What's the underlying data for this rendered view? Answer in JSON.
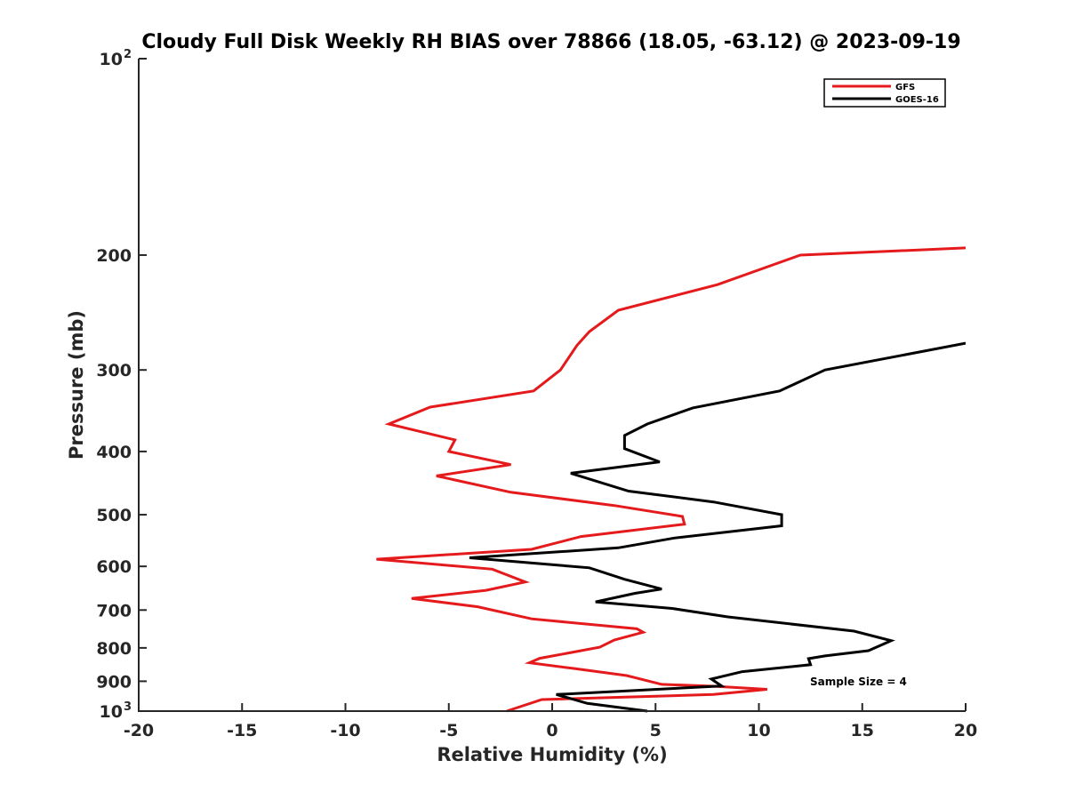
{
  "chart_data": {
    "type": "line",
    "title": "Cloudy Full Disk Weekly RH BIAS over 78866 (18.05, -63.12) @ 2023-09-19",
    "xlabel": "Relative Humidity (%)",
    "ylabel": "Pressure (mb)",
    "xlim": [
      -20,
      20
    ],
    "ylim": [
      100,
      1000
    ],
    "yscale": "log",
    "y_reversed": true,
    "grid": false,
    "legend_position": "top-right",
    "xticks": [
      "-20",
      "-15",
      "-10",
      "-5",
      "0",
      "5",
      "10",
      "15",
      "20"
    ],
    "yticks": [
      {
        "value": 100,
        "base": "10",
        "exp": "2"
      },
      {
        "value": 200,
        "base": "200",
        "exp": ""
      },
      {
        "value": 300,
        "base": "300",
        "exp": ""
      },
      {
        "value": 400,
        "base": "400",
        "exp": ""
      },
      {
        "value": 500,
        "base": "500",
        "exp": ""
      },
      {
        "value": 600,
        "base": "600",
        "exp": ""
      },
      {
        "value": 700,
        "base": "700",
        "exp": ""
      },
      {
        "value": 800,
        "base": "800",
        "exp": ""
      },
      {
        "value": 900,
        "base": "900",
        "exp": ""
      },
      {
        "value": 1000,
        "base": "10",
        "exp": "3"
      }
    ],
    "annotation": "Sample Size = 4",
    "series": [
      {
        "name": "GFS",
        "color": "#e41a1c",
        "points": [
          [
            20.0,
            195
          ],
          [
            12.0,
            200
          ],
          [
            8.0,
            222
          ],
          [
            3.2,
            243
          ],
          [
            1.8,
            262
          ],
          [
            1.2,
            275
          ],
          [
            0.4,
            300
          ],
          [
            -0.9,
            323
          ],
          [
            -5.9,
            342
          ],
          [
            -7.9,
            363
          ],
          [
            -4.7,
            384
          ],
          [
            -5.0,
            400
          ],
          [
            -2.0,
            419
          ],
          [
            -5.6,
            436
          ],
          [
            -2.0,
            462
          ],
          [
            3.0,
            484
          ],
          [
            6.3,
            503
          ],
          [
            6.4,
            517
          ],
          [
            1.4,
            540
          ],
          [
            -1.0,
            565
          ],
          [
            -8.5,
            585
          ],
          [
            -2.9,
            606
          ],
          [
            -1.3,
            634
          ],
          [
            -3.2,
            653
          ],
          [
            -6.8,
            672
          ],
          [
            -3.6,
            692
          ],
          [
            -1.0,
            722
          ],
          [
            4.1,
            748
          ],
          [
            4.4,
            757
          ],
          [
            3.0,
            778
          ],
          [
            2.3,
            798
          ],
          [
            -0.6,
            830
          ],
          [
            -1.1,
            843
          ],
          [
            1.0,
            860
          ],
          [
            3.6,
            882
          ],
          [
            5.3,
            910
          ],
          [
            7.8,
            916
          ],
          [
            10.4,
            926
          ],
          [
            7.8,
            943
          ],
          [
            -0.5,
            960
          ],
          [
            -2.2,
            1000
          ]
        ]
      },
      {
        "name": "GOES-16",
        "color": "#000000",
        "points": [
          [
            20.0,
            273
          ],
          [
            13.2,
            300
          ],
          [
            11.0,
            323
          ],
          [
            6.8,
            343
          ],
          [
            4.6,
            363
          ],
          [
            3.5,
            378
          ],
          [
            3.5,
            396
          ],
          [
            5.2,
            415
          ],
          [
            0.9,
            432
          ],
          [
            3.7,
            460
          ],
          [
            7.8,
            478
          ],
          [
            11.1,
            500
          ],
          [
            11.1,
            520
          ],
          [
            5.9,
            543
          ],
          [
            3.2,
            562
          ],
          [
            -4.0,
            582
          ],
          [
            1.8,
            603
          ],
          [
            3.5,
            628
          ],
          [
            5.3,
            650
          ],
          [
            4.0,
            660
          ],
          [
            2.1,
            680
          ],
          [
            5.8,
            696
          ],
          [
            8.5,
            717
          ],
          [
            14.6,
            754
          ],
          [
            16.4,
            780
          ],
          [
            15.3,
            808
          ],
          [
            13.2,
            823
          ],
          [
            12.4,
            831
          ],
          [
            12.5,
            849
          ],
          [
            9.2,
            870
          ],
          [
            7.7,
            893
          ],
          [
            8.2,
            915
          ],
          [
            0.2,
            943
          ],
          [
            1.7,
            973
          ],
          [
            4.6,
            1000
          ]
        ]
      }
    ]
  }
}
